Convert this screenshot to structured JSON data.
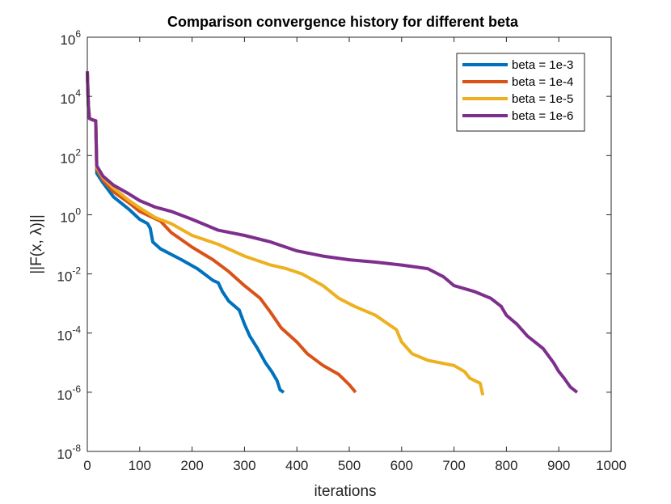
{
  "chart_data": {
    "type": "line",
    "title": "Comparison convergence history for different beta",
    "xlabel": "iterations",
    "ylabel": "||F(x, λ)||",
    "xlim": [
      0,
      1000
    ],
    "ylim": [
      1e-08,
      1000000.0
    ],
    "yscale": "log",
    "grid": false,
    "legend_position": "top-right",
    "x_ticks": [
      {
        "value": 0,
        "label": "0"
      },
      {
        "value": 100,
        "label": "100"
      },
      {
        "value": 200,
        "label": "200"
      },
      {
        "value": 300,
        "label": "300"
      },
      {
        "value": 400,
        "label": "400"
      },
      {
        "value": 500,
        "label": "500"
      },
      {
        "value": 600,
        "label": "600"
      },
      {
        "value": 700,
        "label": "700"
      },
      {
        "value": 800,
        "label": "800"
      },
      {
        "value": 900,
        "label": "900"
      },
      {
        "value": 1000,
        "label": "1000"
      }
    ],
    "y_ticks": [
      {
        "value": 1e-08,
        "base": "10",
        "exp": "-8"
      },
      {
        "value": 1e-06,
        "base": "10",
        "exp": "-6"
      },
      {
        "value": 0.0001,
        "base": "10",
        "exp": "-4"
      },
      {
        "value": 0.01,
        "base": "10",
        "exp": "-2"
      },
      {
        "value": 1,
        "base": "10",
        "exp": "0"
      },
      {
        "value": 100,
        "base": "10",
        "exp": "2"
      },
      {
        "value": 10000,
        "base": "10",
        "exp": "4"
      },
      {
        "value": 1000000,
        "base": "10",
        "exp": "6"
      }
    ],
    "series": [
      {
        "name": "beta = 1e-3",
        "color": "#0072BD",
        "points": [
          [
            0,
            70000
          ],
          [
            2,
            5000
          ],
          [
            4,
            1800
          ],
          [
            10,
            1600
          ],
          [
            16,
            1500
          ],
          [
            18,
            25
          ],
          [
            30,
            12
          ],
          [
            50,
            4
          ],
          [
            80,
            1.5
          ],
          [
            100,
            0.7
          ],
          [
            115,
            0.5
          ],
          [
            120,
            0.35
          ],
          [
            125,
            0.12
          ],
          [
            140,
            0.07
          ],
          [
            180,
            0.03
          ],
          [
            210,
            0.015
          ],
          [
            240,
            0.006
          ],
          [
            250,
            0.005
          ],
          [
            258,
            0.0025
          ],
          [
            270,
            0.0012
          ],
          [
            290,
            0.0006
          ],
          [
            300,
            0.0002
          ],
          [
            310,
            8e-05
          ],
          [
            325,
            3e-05
          ],
          [
            340,
            1e-05
          ],
          [
            352,
            5e-06
          ],
          [
            362,
            2.5e-06
          ],
          [
            368,
            1.2e-06
          ],
          [
            375,
            1e-06
          ]
        ]
      },
      {
        "name": "beta = 1e-4",
        "color": "#D95319",
        "points": [
          [
            0,
            70000
          ],
          [
            2,
            5000
          ],
          [
            4,
            1800
          ],
          [
            10,
            1600
          ],
          [
            16,
            1500
          ],
          [
            18,
            35
          ],
          [
            30,
            15
          ],
          [
            50,
            6
          ],
          [
            80,
            2.5
          ],
          [
            100,
            1.3
          ],
          [
            140,
            0.6
          ],
          [
            160,
            0.25
          ],
          [
            200,
            0.08
          ],
          [
            240,
            0.03
          ],
          [
            270,
            0.012
          ],
          [
            300,
            0.004
          ],
          [
            330,
            0.0015
          ],
          [
            350,
            0.0005
          ],
          [
            370,
            0.00015
          ],
          [
            400,
            5e-05
          ],
          [
            420,
            2e-05
          ],
          [
            450,
            8e-06
          ],
          [
            480,
            4e-06
          ],
          [
            500,
            1.8e-06
          ],
          [
            512,
            1e-06
          ]
        ]
      },
      {
        "name": "beta = 1e-5",
        "color": "#EDB120",
        "points": [
          [
            0,
            70000
          ],
          [
            2,
            5000
          ],
          [
            4,
            1800
          ],
          [
            10,
            1600
          ],
          [
            16,
            1500
          ],
          [
            18,
            40
          ],
          [
            30,
            18
          ],
          [
            50,
            8
          ],
          [
            80,
            3
          ],
          [
            100,
            1.7
          ],
          [
            130,
            0.8
          ],
          [
            160,
            0.5
          ],
          [
            200,
            0.2
          ],
          [
            250,
            0.1
          ],
          [
            300,
            0.04
          ],
          [
            350,
            0.02
          ],
          [
            380,
            0.015
          ],
          [
            410,
            0.01
          ],
          [
            450,
            0.004
          ],
          [
            480,
            0.0015
          ],
          [
            510,
            0.0008
          ],
          [
            550,
            0.0004
          ],
          [
            590,
            0.00013
          ],
          [
            600,
            5e-05
          ],
          [
            620,
            2e-05
          ],
          [
            650,
            1.2e-05
          ],
          [
            700,
            8e-06
          ],
          [
            720,
            5e-06
          ],
          [
            730,
            3e-06
          ],
          [
            750,
            2e-06
          ],
          [
            755,
            8e-07
          ]
        ]
      },
      {
        "name": "beta = 1e-6",
        "color": "#7E2F8E",
        "points": [
          [
            0,
            70000
          ],
          [
            2,
            5000
          ],
          [
            4,
            1800
          ],
          [
            10,
            1600
          ],
          [
            16,
            1500
          ],
          [
            18,
            45
          ],
          [
            30,
            20
          ],
          [
            50,
            10
          ],
          [
            80,
            5
          ],
          [
            100,
            3
          ],
          [
            130,
            1.8
          ],
          [
            160,
            1.3
          ],
          [
            200,
            0.7
          ],
          [
            250,
            0.3
          ],
          [
            300,
            0.2
          ],
          [
            350,
            0.12
          ],
          [
            400,
            0.06
          ],
          [
            450,
            0.04
          ],
          [
            500,
            0.03
          ],
          [
            550,
            0.025
          ],
          [
            600,
            0.02
          ],
          [
            650,
            0.015
          ],
          [
            680,
            0.008
          ],
          [
            700,
            0.004
          ],
          [
            740,
            0.0025
          ],
          [
            770,
            0.0015
          ],
          [
            790,
            0.0008
          ],
          [
            800,
            0.0004
          ],
          [
            820,
            0.0002
          ],
          [
            840,
            8e-05
          ],
          [
            870,
            3e-05
          ],
          [
            890,
            1e-05
          ],
          [
            900,
            5e-06
          ],
          [
            910,
            3e-06
          ],
          [
            922,
            1.5e-06
          ],
          [
            935,
            1e-06
          ]
        ]
      }
    ]
  }
}
